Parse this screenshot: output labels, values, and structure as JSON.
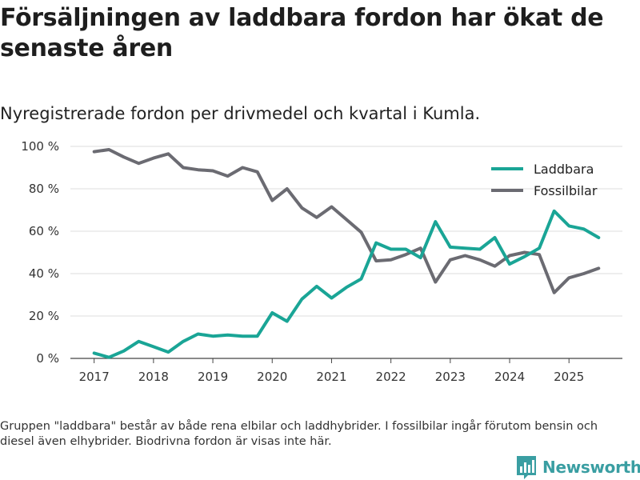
{
  "header": {
    "title": "Försäljningen av laddbara fordon har ökat de senaste åren",
    "subtitle": "Nyregistrerade fordon per drivmedel och kvartal i Kumla."
  },
  "footer": {
    "note": "Gruppen \"laddbara\" består av både rena elbilar och laddhybrider. I fossilbilar ingår förutom bensin och diesel även elhybrider. Biodrivna fordon är visas inte här.",
    "brand": "Newsworthy"
  },
  "chart_data": {
    "type": "line",
    "title": "Försäljningen av laddbara fordon har ökat de senaste åren",
    "subtitle": "Nyregistrerade fordon per drivmedel och kvartal i Kumla.",
    "xlabel": "",
    "ylabel": "",
    "xlim": [
      2016.6,
      2025.9
    ],
    "ylim": [
      0,
      100
    ],
    "x_ticks": [
      2017,
      2018,
      2019,
      2020,
      2021,
      2022,
      2023,
      2024,
      2025
    ],
    "y_ticks": [
      0,
      20,
      40,
      60,
      80,
      100
    ],
    "y_tick_labels": [
      "0 %",
      "20 %",
      "40 %",
      "60 %",
      "80 %",
      "100 %"
    ],
    "grid": "horizontal",
    "legend_position": "top-right",
    "x": [
      2017.0,
      2017.25,
      2017.5,
      2017.75,
      2018.0,
      2018.25,
      2018.5,
      2018.75,
      2019.0,
      2019.25,
      2019.5,
      2019.75,
      2020.0,
      2020.25,
      2020.5,
      2020.75,
      2021.0,
      2021.25,
      2021.5,
      2021.75,
      2022.0,
      2022.25,
      2022.5,
      2022.75,
      2023.0,
      2023.25,
      2023.5,
      2023.75,
      2024.0,
      2024.25,
      2024.5,
      2024.75,
      2025.0,
      2025.25,
      2025.5
    ],
    "series": [
      {
        "name": "Laddbara",
        "color": "#1aa596",
        "values": [
          2.5,
          0.5,
          3.5,
          8,
          5.5,
          3,
          8,
          11.5,
          10.5,
          11,
          10.5,
          10.5,
          21.5,
          17.5,
          28,
          34,
          28.5,
          33.5,
          37.5,
          54.5,
          51.5,
          51.5,
          47.5,
          64.5,
          52.5,
          52,
          51.5,
          57,
          44.5,
          48,
          52,
          69.5,
          62.5,
          61,
          57
        ]
      },
      {
        "name": "Fossilbilar",
        "color": "#6b6b72",
        "values": [
          97.5,
          98.5,
          95,
          92,
          94.5,
          96.5,
          90,
          89,
          88.5,
          86,
          90,
          88,
          74.5,
          80,
          71,
          66.5,
          71.5,
          65.5,
          59.5,
          46,
          46.5,
          49,
          52,
          36,
          46.5,
          48.5,
          46.5,
          43.5,
          48.5,
          50,
          49,
          31,
          38,
          40,
          42.5
        ]
      }
    ]
  }
}
